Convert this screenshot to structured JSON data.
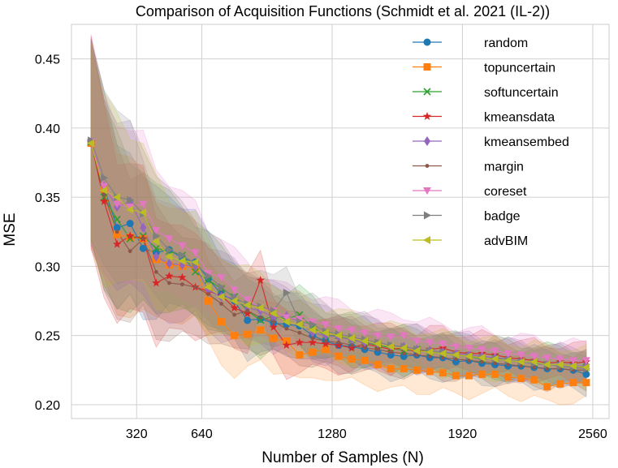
{
  "chart_data": {
    "type": "line",
    "title": "Comparison of Acquisition Functions (Schmidt et al. 2021 (IL-2))",
    "xlabel": "Number of Samples (N)",
    "ylabel": "MSE",
    "xlim": [
      0,
      2640
    ],
    "ylim": [
      0.19,
      0.475
    ],
    "xticks": [
      320,
      640,
      1280,
      1920,
      2560
    ],
    "xtick_labels": [
      "320",
      "640",
      "1280",
      "1920",
      "2560"
    ],
    "yticks": [
      0.2,
      0.25,
      0.3,
      0.35,
      0.4,
      0.45
    ],
    "ytick_labels": [
      "0.20",
      "0.25",
      "0.30",
      "0.35",
      "0.40",
      "0.45"
    ],
    "grid": true,
    "legend_position": "top-right",
    "x": [
      96,
      160,
      224,
      288,
      352,
      416,
      480,
      544,
      608,
      672,
      736,
      800,
      864,
      928,
      992,
      1056,
      1120,
      1184,
      1248,
      1312,
      1376,
      1440,
      1504,
      1568,
      1632,
      1696,
      1760,
      1824,
      1888,
      1952,
      2016,
      2080,
      2144,
      2208,
      2272,
      2336,
      2400,
      2464,
      2528
    ],
    "series": [
      {
        "name": "random",
        "color": "#1f77b4",
        "marker": "circle",
        "values": [
          0.39,
          0.357,
          0.328,
          0.331,
          0.313,
          0.31,
          0.312,
          0.306,
          0.303,
          0.291,
          0.28,
          0.275,
          0.261,
          0.262,
          0.259,
          0.258,
          0.257,
          0.25,
          0.246,
          0.243,
          0.242,
          0.24,
          0.238,
          0.236,
          0.235,
          0.236,
          0.234,
          0.234,
          0.231,
          0.232,
          0.23,
          0.229,
          0.228,
          0.228,
          0.227,
          0.226,
          0.226,
          0.225,
          0.222
        ]
      },
      {
        "name": "topuncertain",
        "color": "#ff7f0e",
        "marker": "square",
        "values": [
          0.389,
          0.356,
          0.323,
          0.321,
          0.32,
          0.305,
          0.301,
          0.3,
          0.299,
          0.275,
          0.26,
          0.25,
          0.251,
          0.254,
          0.248,
          0.246,
          0.236,
          0.238,
          0.24,
          0.235,
          0.233,
          0.232,
          0.229,
          0.226,
          0.226,
          0.225,
          0.224,
          0.223,
          0.221,
          0.221,
          0.222,
          0.222,
          0.22,
          0.219,
          0.218,
          0.213,
          0.215,
          0.216,
          0.216
        ]
      },
      {
        "name": "softuncertain",
        "color": "#2ca02c",
        "marker": "x",
        "values": [
          0.39,
          0.35,
          0.334,
          0.32,
          0.322,
          0.313,
          0.311,
          0.308,
          0.296,
          0.29,
          0.284,
          0.278,
          0.268,
          0.261,
          0.264,
          0.262,
          0.265,
          0.256,
          0.25,
          0.25,
          0.247,
          0.245,
          0.243,
          0.241,
          0.239,
          0.24,
          0.238,
          0.237,
          0.236,
          0.235,
          0.233,
          0.234,
          0.232,
          0.231,
          0.23,
          0.229,
          0.229,
          0.228,
          0.227
        ]
      },
      {
        "name": "kmeansdata",
        "color": "#d62728",
        "marker": "star",
        "values": [
          0.39,
          0.347,
          0.316,
          0.322,
          0.32,
          0.288,
          0.293,
          0.292,
          0.285,
          0.282,
          0.279,
          0.27,
          0.266,
          0.29,
          0.256,
          0.243,
          0.245,
          0.245,
          0.244,
          0.243,
          0.241,
          0.244,
          0.242,
          0.24,
          0.241,
          0.238,
          0.24,
          0.241,
          0.238,
          0.237,
          0.237,
          0.236,
          0.234,
          0.233,
          0.232,
          0.23,
          0.231,
          0.23,
          0.231
        ]
      },
      {
        "name": "kmeansembed",
        "color": "#9467bd",
        "marker": "diamond",
        "values": [
          0.39,
          0.358,
          0.343,
          0.347,
          0.328,
          0.307,
          0.302,
          0.301,
          0.3,
          0.283,
          0.278,
          0.277,
          0.27,
          0.268,
          0.263,
          0.264,
          0.26,
          0.252,
          0.25,
          0.249,
          0.247,
          0.245,
          0.244,
          0.242,
          0.242,
          0.24,
          0.239,
          0.238,
          0.237,
          0.236,
          0.235,
          0.234,
          0.233,
          0.231,
          0.23,
          0.229,
          0.229,
          0.228,
          0.228
        ]
      },
      {
        "name": "margin",
        "color": "#8c564b",
        "marker": "dot",
        "values": [
          0.39,
          0.352,
          0.325,
          0.311,
          0.32,
          0.296,
          0.288,
          0.287,
          0.285,
          0.28,
          0.273,
          0.265,
          0.268,
          0.263,
          0.26,
          0.255,
          0.252,
          0.248,
          0.246,
          0.245,
          0.243,
          0.241,
          0.24,
          0.238,
          0.237,
          0.236,
          0.235,
          0.234,
          0.233,
          0.232,
          0.231,
          0.23,
          0.229,
          0.228,
          0.227,
          0.226,
          0.226,
          0.225,
          0.225
        ]
      },
      {
        "name": "coreset",
        "color": "#e377c2",
        "marker": "triangle-down",
        "values": [
          0.39,
          0.358,
          0.345,
          0.343,
          0.345,
          0.326,
          0.32,
          0.315,
          0.31,
          0.295,
          0.292,
          0.283,
          0.276,
          0.27,
          0.268,
          0.263,
          0.262,
          0.26,
          0.258,
          0.255,
          0.254,
          0.252,
          0.25,
          0.249,
          0.25,
          0.246,
          0.245,
          0.244,
          0.242,
          0.241,
          0.24,
          0.239,
          0.237,
          0.236,
          0.235,
          0.234,
          0.233,
          0.232,
          0.232
        ]
      },
      {
        "name": "badge",
        "color": "#7f7f7f",
        "marker": "triangle-right",
        "values": [
          0.391,
          0.364,
          0.35,
          0.348,
          0.338,
          0.322,
          0.312,
          0.308,
          0.302,
          0.293,
          0.285,
          0.277,
          0.273,
          0.271,
          0.268,
          0.281,
          0.26,
          0.258,
          0.253,
          0.251,
          0.249,
          0.247,
          0.245,
          0.243,
          0.242,
          0.24,
          0.239,
          0.238,
          0.236,
          0.235,
          0.234,
          0.233,
          0.232,
          0.231,
          0.23,
          0.229,
          0.228,
          0.227,
          0.226
        ]
      },
      {
        "name": "advBIM",
        "color": "#bcbd22",
        "marker": "triangle-left",
        "values": [
          0.389,
          0.355,
          0.35,
          0.341,
          0.339,
          0.318,
          0.307,
          0.304,
          0.303,
          0.285,
          0.278,
          0.275,
          0.272,
          0.27,
          0.266,
          0.26,
          0.258,
          0.254,
          0.252,
          0.25,
          0.248,
          0.246,
          0.244,
          0.242,
          0.241,
          0.239,
          0.238,
          0.237,
          0.236,
          0.235,
          0.234,
          0.233,
          0.232,
          0.231,
          0.231,
          0.229,
          0.229,
          0.228,
          0.227
        ]
      }
    ]
  }
}
